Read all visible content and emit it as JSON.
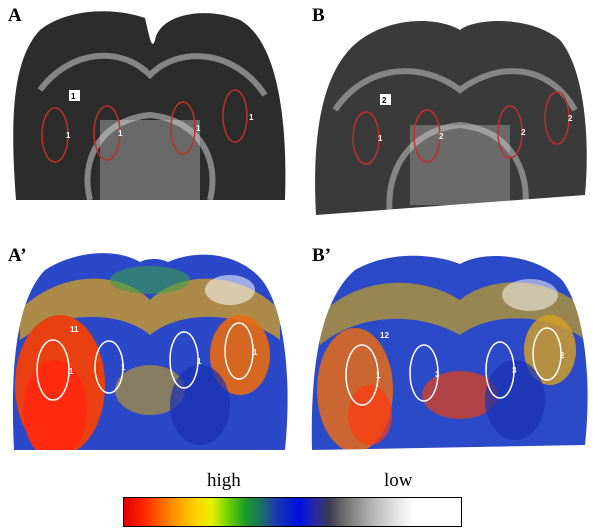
{
  "panels": {
    "A": {
      "letter": "A",
      "rois": [
        {
          "n": "1"
        },
        {
          "n": "1"
        },
        {
          "n": "1"
        },
        {
          "n": "1"
        },
        {
          "n": "1"
        }
      ]
    },
    "B": {
      "letter": "B",
      "rois": [
        {
          "n": "2"
        },
        {
          "n": "1"
        },
        {
          "n": "2"
        },
        {
          "n": "2"
        },
        {
          "n": "2"
        }
      ]
    },
    "A2": {
      "letter": "A’",
      "rois": [
        {
          "n": "11"
        },
        {
          "n": "1"
        },
        {
          "n": "1"
        },
        {
          "n": "1"
        },
        {
          "n": "1"
        }
      ]
    },
    "B2": {
      "letter": "B’",
      "rois": [
        {
          "n": "12"
        },
        {
          "n": "1"
        },
        {
          "n": "3"
        },
        {
          "n": "3"
        },
        {
          "n": "2"
        }
      ]
    }
  },
  "legend": {
    "high": "high",
    "low": "low"
  },
  "colors": {
    "grayscale_roi": "#c0302a",
    "color_roi": "#ffffff"
  }
}
